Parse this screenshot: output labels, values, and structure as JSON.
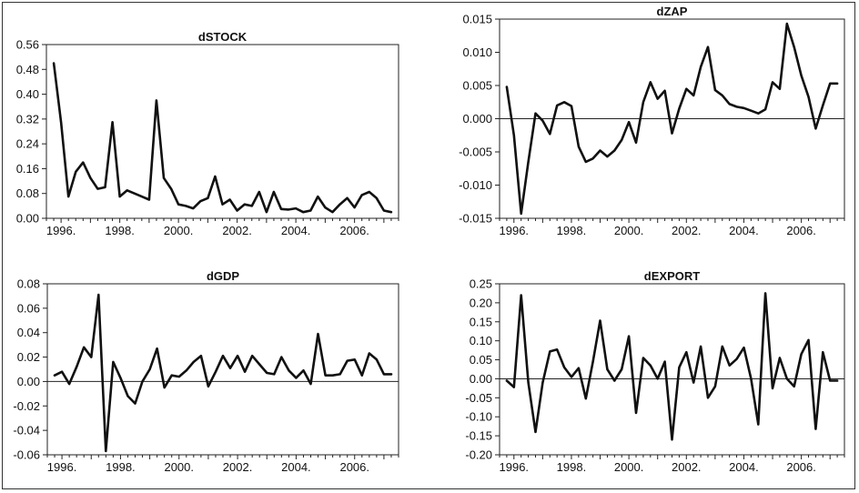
{
  "chart_data": [
    {
      "type": "line",
      "title": "dSTOCK",
      "ylim": [
        0.0,
        0.56
      ],
      "yticks": [
        "0.00",
        "0.08",
        "0.16",
        "0.24",
        "0.32",
        "0.40",
        "0.48",
        "0.56"
      ],
      "xlim": [
        1995.5,
        2007.5
      ],
      "xticks": [
        "1996.",
        "1998.",
        "2000.",
        "2002.",
        "2004.",
        "2006."
      ],
      "zero_line": false,
      "x": [
        1995.75,
        1996.0,
        1996.25,
        1996.5,
        1996.75,
        1997.0,
        1997.25,
        1997.5,
        1997.75,
        1998.0,
        1998.25,
        1998.5,
        1998.75,
        1999.0,
        1999.25,
        1999.5,
        1999.75,
        2000.0,
        2000.25,
        2000.5,
        2000.75,
        2001.0,
        2001.25,
        2001.5,
        2001.75,
        2002.0,
        2002.25,
        2002.5,
        2002.75,
        2003.0,
        2003.25,
        2003.5,
        2003.75,
        2004.0,
        2004.25,
        2004.5,
        2004.75,
        2005.0,
        2005.25,
        2005.5,
        2005.75,
        2006.0,
        2006.25,
        2006.5,
        2006.75,
        2007.0,
        2007.25
      ],
      "values": [
        0.5,
        0.31,
        0.07,
        0.15,
        0.18,
        0.13,
        0.095,
        0.1,
        0.31,
        0.07,
        0.09,
        0.08,
        0.07,
        0.06,
        0.38,
        0.13,
        0.095,
        0.045,
        0.04,
        0.032,
        0.055,
        0.065,
        0.135,
        0.045,
        0.06,
        0.025,
        0.045,
        0.04,
        0.085,
        0.02,
        0.085,
        0.03,
        0.028,
        0.032,
        0.02,
        0.025,
        0.07,
        0.035,
        0.02,
        0.045,
        0.065,
        0.035,
        0.075,
        0.085,
        0.065,
        0.025,
        0.02
      ]
    },
    {
      "type": "line",
      "title": "dZAP",
      "ylim": [
        -0.015,
        0.015
      ],
      "yticks": [
        "-0.015",
        "-0.010",
        "-0.005",
        "0.000",
        "0.005",
        "0.010",
        "0.015"
      ],
      "xlim": [
        1995.5,
        2007.5
      ],
      "xticks": [
        "1996.",
        "1998.",
        "2000.",
        "2002.",
        "2004.",
        "2006."
      ],
      "zero_line": true,
      "x": [
        1995.75,
        1996.0,
        1996.25,
        1996.5,
        1996.75,
        1997.0,
        1997.25,
        1997.5,
        1997.75,
        1998.0,
        1998.25,
        1998.5,
        1998.75,
        1999.0,
        1999.25,
        1999.5,
        1999.75,
        2000.0,
        2000.25,
        2000.5,
        2000.75,
        2001.0,
        2001.25,
        2001.5,
        2001.75,
        2002.0,
        2002.25,
        2002.5,
        2002.75,
        2003.0,
        2003.25,
        2003.5,
        2003.75,
        2004.0,
        2004.25,
        2004.5,
        2004.75,
        2005.0,
        2005.25,
        2005.5,
        2005.75,
        2006.0,
        2006.25,
        2006.5,
        2006.75,
        2007.0,
        2007.25
      ],
      "values": [
        0.0048,
        -0.0025,
        -0.0143,
        -0.0065,
        0.0008,
        -0.0003,
        -0.0023,
        0.002,
        0.0025,
        0.0019,
        -0.0042,
        -0.0065,
        -0.006,
        -0.0048,
        -0.0057,
        -0.0048,
        -0.0032,
        -0.0005,
        -0.0036,
        0.0025,
        0.0055,
        0.003,
        0.0042,
        -0.0022,
        0.0015,
        0.0045,
        0.0035,
        0.0078,
        0.0108,
        0.0043,
        0.0035,
        0.0022,
        0.0018,
        0.0016,
        0.0012,
        0.0008,
        0.0014,
        0.0055,
        0.0045,
        0.0143,
        0.0108,
        0.0065,
        0.0033,
        -0.0015,
        0.002,
        0.0053,
        0.0053
      ]
    },
    {
      "type": "line",
      "title": "dGDP",
      "ylim": [
        -0.06,
        0.08
      ],
      "yticks": [
        "-0.06",
        "-0.04",
        "-0.02",
        "0.00",
        "0.02",
        "0.04",
        "0.06",
        "0.08"
      ],
      "xlim": [
        1995.5,
        2007.5
      ],
      "xticks": [
        "1996.",
        "1998.",
        "2000.",
        "2002.",
        "2004.",
        "2006."
      ],
      "zero_line": true,
      "x": [
        1995.75,
        1996.0,
        1996.25,
        1996.5,
        1996.75,
        1997.0,
        1997.25,
        1997.5,
        1997.75,
        1998.0,
        1998.25,
        1998.5,
        1998.75,
        1999.0,
        1999.25,
        1999.5,
        1999.75,
        2000.0,
        2000.25,
        2000.5,
        2000.75,
        2001.0,
        2001.25,
        2001.5,
        2001.75,
        2002.0,
        2002.25,
        2002.5,
        2002.75,
        2003.0,
        2003.25,
        2003.5,
        2003.75,
        2004.0,
        2004.25,
        2004.5,
        2004.75,
        2005.0,
        2005.25,
        2005.5,
        2005.75,
        2006.0,
        2006.25,
        2006.5,
        2006.75,
        2007.0,
        2007.25
      ],
      "values": [
        0.005,
        0.008,
        -0.002,
        0.012,
        0.028,
        0.02,
        0.071,
        -0.057,
        0.016,
        0.003,
        -0.012,
        -0.018,
        0.0,
        0.01,
        0.027,
        -0.005,
        0.005,
        0.004,
        0.009,
        0.016,
        0.021,
        -0.004,
        0.008,
        0.021,
        0.011,
        0.021,
        0.008,
        0.021,
        0.014,
        0.007,
        0.006,
        0.02,
        0.009,
        0.003,
        0.009,
        -0.002,
        0.039,
        0.005,
        0.005,
        0.006,
        0.017,
        0.018,
        0.005,
        0.023,
        0.018,
        0.006,
        0.006
      ]
    },
    {
      "type": "line",
      "title": "dEXPORT",
      "ylim": [
        -0.2,
        0.25
      ],
      "yticks": [
        "-0.20",
        "-0.15",
        "-0.10",
        "-0.05",
        "0.00",
        "0.05",
        "0.10",
        "0.15",
        "0.20",
        "0.25"
      ],
      "xlim": [
        1995.5,
        2007.5
      ],
      "xticks": [
        "1996.",
        "1998.",
        "2000.",
        "2002.",
        "2004.",
        "2006."
      ],
      "zero_line": true,
      "x": [
        1995.75,
        1996.0,
        1996.25,
        1996.5,
        1996.75,
        1997.0,
        1997.25,
        1997.5,
        1997.75,
        1998.0,
        1998.25,
        1998.5,
        1998.75,
        1999.0,
        1999.25,
        1999.5,
        1999.75,
        2000.0,
        2000.25,
        2000.5,
        2000.75,
        2001.0,
        2001.25,
        2001.5,
        2001.75,
        2002.0,
        2002.25,
        2002.5,
        2002.75,
        2003.0,
        2003.25,
        2003.5,
        2003.75,
        2004.0,
        2004.25,
        2004.5,
        2004.75,
        2005.0,
        2005.25,
        2005.5,
        2005.75,
        2006.0,
        2006.25,
        2006.5,
        2006.75,
        2007.0,
        2007.25
      ],
      "values": [
        -0.005,
        -0.022,
        0.22,
        -0.01,
        -0.14,
        -0.01,
        0.072,
        0.077,
        0.03,
        0.005,
        0.028,
        -0.052,
        0.045,
        0.153,
        0.025,
        -0.005,
        0.025,
        0.112,
        -0.09,
        0.055,
        0.035,
        0.0,
        0.045,
        -0.16,
        0.03,
        0.07,
        -0.01,
        0.085,
        -0.05,
        -0.02,
        0.085,
        0.035,
        0.052,
        0.082,
        0.0,
        -0.12,
        0.225,
        -0.025,
        0.055,
        0.0,
        -0.02,
        0.065,
        0.102,
        -0.132,
        0.07,
        -0.005,
        -0.005
      ]
    }
  ]
}
